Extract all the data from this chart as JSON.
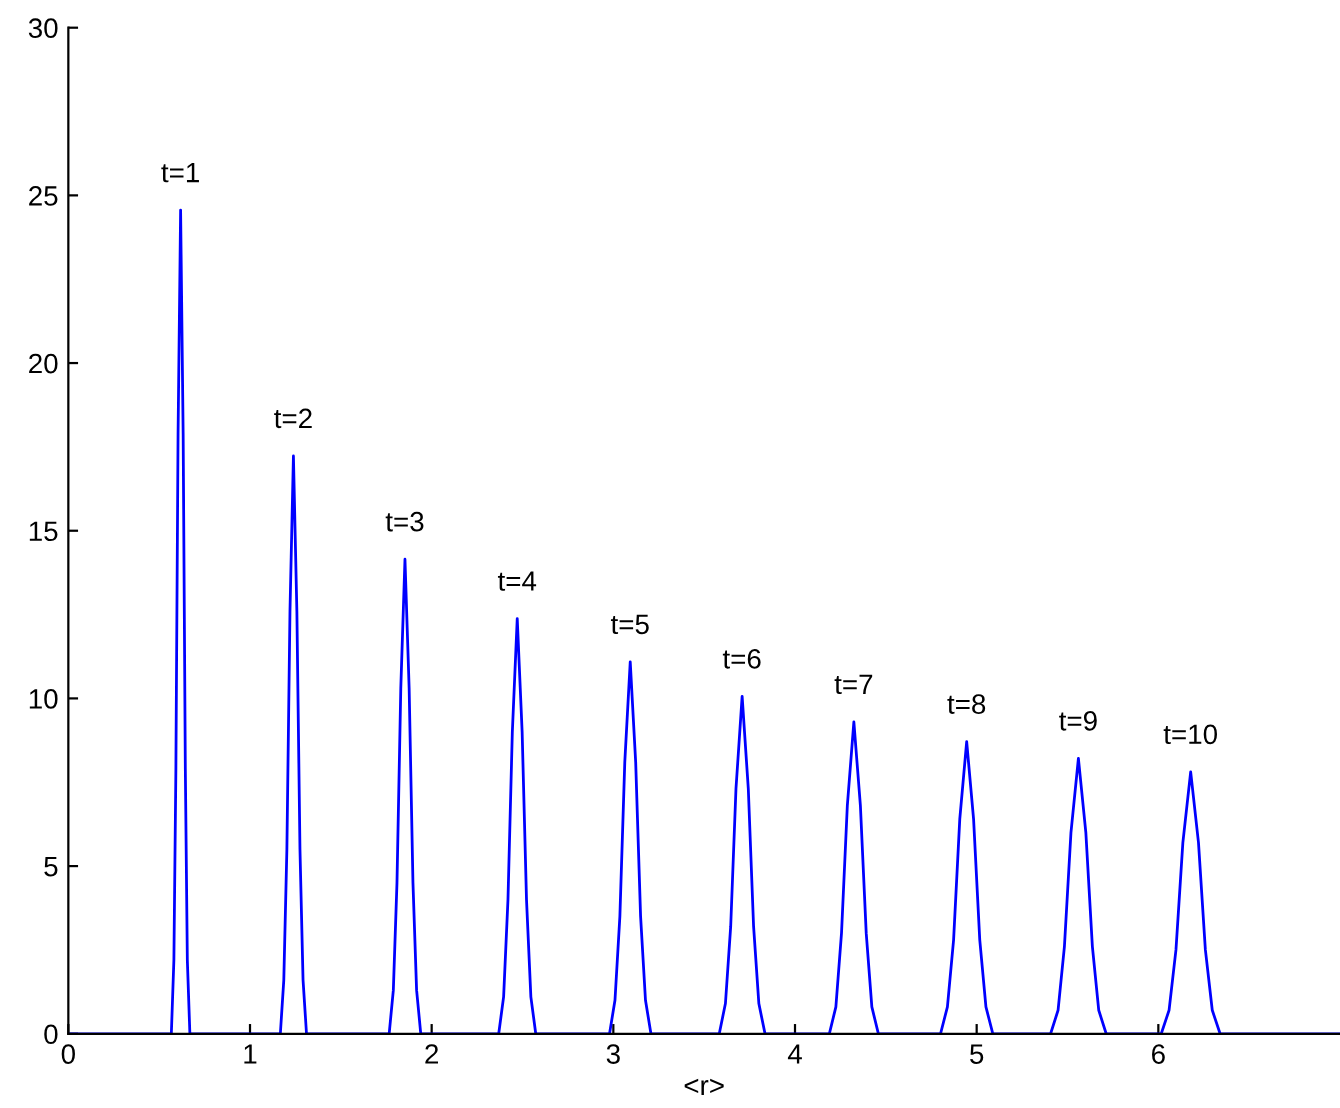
{
  "chart_data": {
    "type": "line",
    "xlabel": "<r>",
    "xlim": [
      0,
      7
    ],
    "ylim": [
      0,
      30
    ],
    "xticks": [
      0,
      1,
      2,
      3,
      4,
      5,
      6
    ],
    "yticks": [
      0,
      5,
      10,
      15,
      20,
      25,
      30
    ],
    "grid": false,
    "legend": false,
    "marker": "none",
    "line_style": "solid",
    "series": [
      {
        "color": "#0000ff",
        "x": [
          0,
          0.567,
          0.581,
          0.592,
          0.604,
          0.618,
          0.632,
          0.644,
          0.655,
          0.669,
          1.167,
          1.186,
          1.203,
          1.22,
          1.239,
          1.258,
          1.275,
          1.292,
          1.311,
          1.766,
          1.789,
          1.809,
          1.83,
          1.853,
          1.876,
          1.897,
          1.917,
          1.94,
          2.369,
          2.396,
          2.42,
          2.444,
          2.471,
          2.498,
          2.522,
          2.546,
          2.573,
          2.979,
          3.009,
          3.036,
          3.063,
          3.093,
          3.123,
          3.15,
          3.177,
          3.207,
          3.583,
          3.617,
          3.646,
          3.675,
          3.709,
          3.743,
          3.772,
          3.801,
          3.835,
          4.189,
          4.225,
          4.256,
          4.288,
          4.324,
          4.36,
          4.392,
          4.423,
          4.459,
          4.801,
          4.839,
          4.873,
          4.907,
          4.945,
          4.983,
          5.017,
          5.051,
          5.089,
          5.407,
          5.448,
          5.483,
          5.519,
          5.56,
          5.601,
          5.637,
          5.672,
          5.713,
          6.016,
          6.059,
          6.097,
          6.135,
          6.178,
          6.221,
          6.259,
          6.297,
          6.34,
          7
        ],
        "values": [
          0,
          0,
          2.2,
          7.9,
          17.9,
          24.56,
          17.9,
          7.9,
          2.2,
          0,
          0,
          1.6,
          5.5,
          12.6,
          17.23,
          12.6,
          5.5,
          1.6,
          0,
          0,
          1.3,
          4.5,
          10.3,
          14.15,
          10.3,
          4.5,
          1.3,
          0,
          0,
          1.1,
          4.0,
          9.0,
          12.38,
          9.0,
          4.0,
          1.1,
          0,
          0,
          1.0,
          3.5,
          8.1,
          11.09,
          8.1,
          3.5,
          1.0,
          0,
          0,
          0.9,
          3.2,
          7.3,
          10.06,
          7.3,
          3.2,
          0.9,
          0,
          0,
          0.8,
          3.0,
          6.8,
          9.3,
          6.8,
          3.0,
          0.8,
          0,
          0,
          0.8,
          2.8,
          6.4,
          8.71,
          6.4,
          2.8,
          0.8,
          0,
          0,
          0.7,
          2.6,
          6.0,
          8.21,
          6.0,
          2.6,
          0.7,
          0,
          0,
          0.7,
          2.5,
          5.7,
          7.81,
          5.7,
          2.5,
          0.7,
          0,
          0
        ]
      }
    ],
    "annotations": [
      {
        "text": "t=1",
        "x": 0.618,
        "y": 24.56
      },
      {
        "text": "t=2",
        "x": 1.239,
        "y": 17.23
      },
      {
        "text": "t=3",
        "x": 1.853,
        "y": 14.15
      },
      {
        "text": "t=4",
        "x": 2.471,
        "y": 12.38
      },
      {
        "text": "t=5",
        "x": 3.093,
        "y": 11.09
      },
      {
        "text": "t=6",
        "x": 3.709,
        "y": 10.06
      },
      {
        "text": "t=7",
        "x": 4.324,
        "y": 9.3
      },
      {
        "text": "t=8",
        "x": 4.945,
        "y": 8.71
      },
      {
        "text": "t=9",
        "x": 5.56,
        "y": 8.21
      },
      {
        "text": "t=10",
        "x": 6.178,
        "y": 7.81
      }
    ]
  }
}
